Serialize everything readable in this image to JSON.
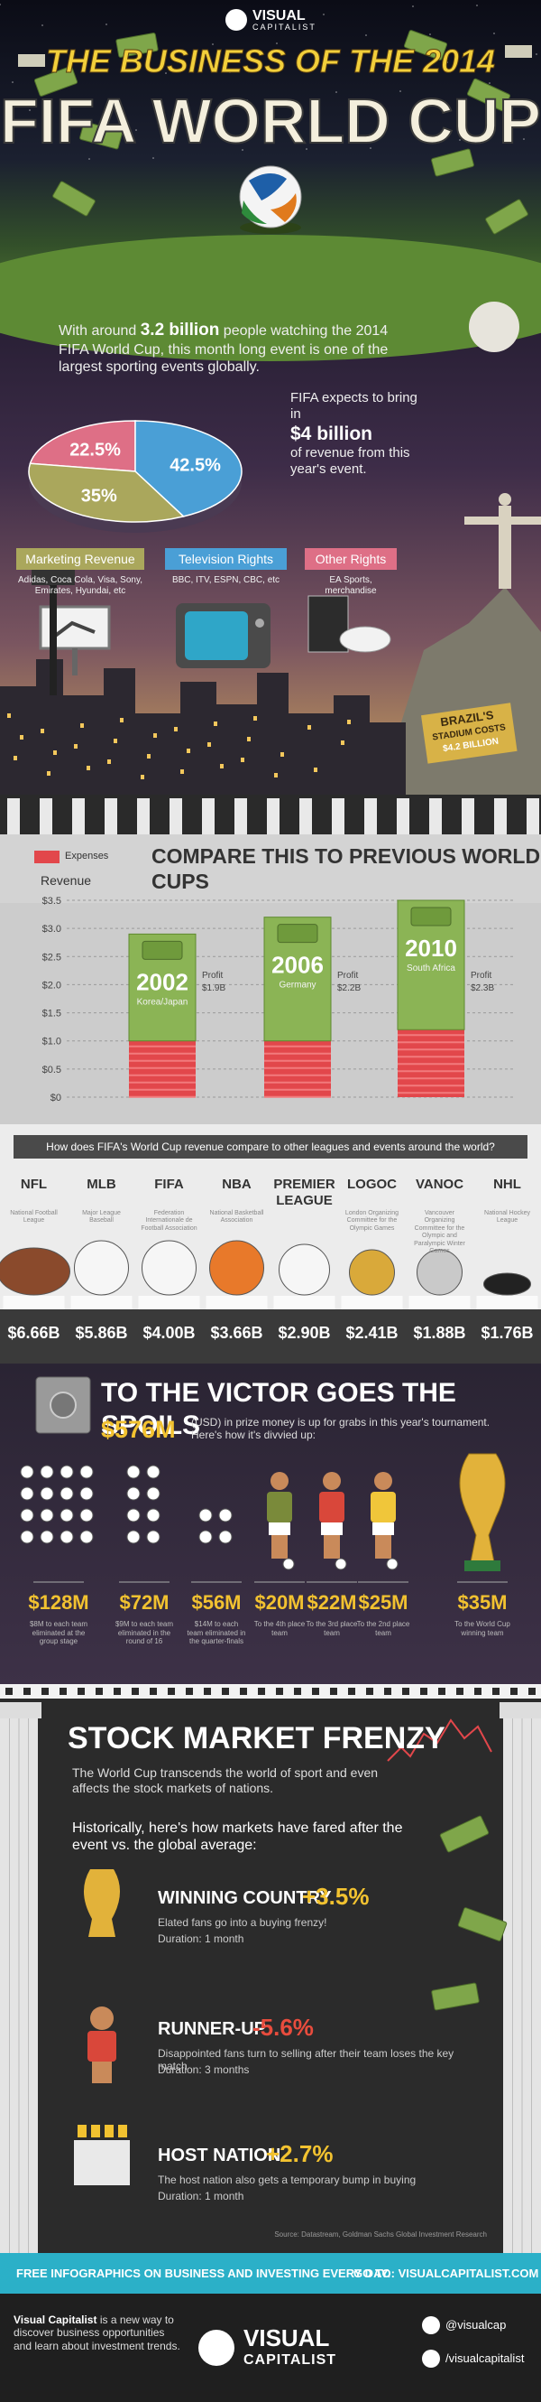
{
  "header": {
    "brand": [
      "VISUAL",
      "CAPITALIST"
    ],
    "title_line1": "THE BUSINESS OF THE 2014",
    "title_line2": "FIFA WORLD CUP"
  },
  "intro": {
    "text_parts": [
      "With around ",
      "3.2 billion",
      " people watching the 2014 FIFA World Cup, this month long event is one of the largest sporting events globally."
    ],
    "pie": {
      "values": [
        22.5,
        42.5,
        35
      ],
      "value_labels": [
        "22.5%",
        "42.5%",
        "35%"
      ],
      "colors": [
        "#de6f86",
        "#4a9fd6",
        "#aaa75c"
      ]
    },
    "expects": [
      "FIFA expects to bring in",
      "$4 billion",
      "of revenue from this year's event."
    ],
    "revenue_types": [
      {
        "name": "Marketing Revenue",
        "detail": "Adidas, Coca Cola, Visa, Sony, Emirates, Hyundai, etc",
        "color": "#aaa75c"
      },
      {
        "name": "Television Rights",
        "detail": "BBC, ITV, ESPN, CBC, etc",
        "color": "#4a9fd6"
      },
      {
        "name": "Other Rights",
        "detail": "EA Sports, merchandise",
        "color": "#de6f86"
      }
    ],
    "stadium_tag": [
      "BRAZIL'S",
      "STADIUM COSTS",
      "$4.2 BILLION"
    ]
  },
  "compare": {
    "legend": "Expenses",
    "title": "COMPARE THIS TO PREVIOUS WORLD CUPS",
    "axis_label": "Revenue",
    "ylim": [
      0,
      3.5
    ],
    "yticks": [
      {
        "value": 0,
        "label": "$0"
      },
      {
        "value": 0.5,
        "label": "$0.5"
      },
      {
        "value": 1,
        "label": "$1.0"
      },
      {
        "value": 1.5,
        "label": "$1.5"
      },
      {
        "value": 2,
        "label": "$2.0"
      },
      {
        "value": 2.5,
        "label": "$2.5"
      },
      {
        "value": 3,
        "label": "$3.0"
      },
      {
        "value": 3.5,
        "label": "$3.5"
      }
    ],
    "categories": [
      "2002",
      "2006",
      "2010"
    ],
    "hosts": [
      "Korea/Japan",
      "Germany",
      "South Africa"
    ],
    "expenses": [
      1.0,
      1.0,
      1.2
    ],
    "profit": {
      "label": "Profit",
      "values": [
        1.9,
        2.2,
        2.3
      ],
      "value_labels": [
        "$1.9B",
        "$2.2B",
        "$2.3B"
      ]
    }
  },
  "leagues": {
    "question": "How does FIFA's World Cup revenue compare to other leagues and events around the world?",
    "names": [
      "NFL",
      "MLB",
      "FIFA",
      "NBA",
      "PREMIER LEAGUE",
      "LOGOC",
      "VANOC",
      "NHL"
    ],
    "details": [
      "National Football League",
      "Major League Baseball",
      "Federation Internationale de Football Association",
      "National Basketball Association",
      null,
      "London Organizing Committee for the Olympic Games",
      "Vancouver Organizing Committee for the Olympic and Paralympic Winter Games",
      "National Hockey League"
    ],
    "revenues": [
      "$6.66B",
      "$5.86B",
      "$4.00B",
      "$3.66B",
      "$2.90B",
      "$2.41B",
      "$1.88B",
      "$1.76B"
    ]
  },
  "prizes": {
    "title": "TO THE VICTOR GOES THE SPOILS",
    "total": "$576M",
    "intro": "(USD) in prize money is up for grabs in this year's tournament. Here's how it's divvied up:",
    "amounts": [
      "$128M",
      "$72M",
      "$56M",
      "$20M",
      "$22M",
      "$25M",
      "$35M"
    ],
    "details": [
      "$8M to each team eliminated at the group stage",
      "$9M to each team eliminated in the round of 16",
      "$14M to each team eliminated in the quarter-finals",
      "To the 4th place team",
      "To the 3rd place team",
      "To the 2nd place team",
      "To the World Cup winning team"
    ]
  },
  "stock": {
    "title": "STOCK MARKET FRENZY",
    "subtitle": "The World Cup transcends the world of sport and even affects the stock markets of nations.",
    "lead": "Historically, here's how markets have fared after the event vs. the global average:",
    "items": [
      {
        "name": "WINNING COUNTRY",
        "change": "+3.5%",
        "description": "Elated fans go into a buying frenzy!",
        "duration": "Duration: 1 month"
      },
      {
        "name": "RUNNER-UP",
        "change": "-5.6%",
        "description": "Disappointed fans turn to selling after their team loses the key match",
        "duration": "Duration: 3 months"
      },
      {
        "name": "HOST NATION",
        "change": "+2.7%",
        "description": "The host nation also gets a temporary bump in buying",
        "duration": "Duration: 1 month"
      }
    ],
    "source": "Source: Datastream, Goldman Sachs Global Investment Research"
  },
  "banner": {
    "left": "FREE INFOGRAPHICS ON BUSINESS AND INVESTING EVERY DAY.",
    "right": "GO TO: VISUALCAPITALIST.COM"
  },
  "footer": {
    "about": [
      "Visual Capitalist",
      " is a new way to discover business opportunities and learn about investment trends."
    ],
    "brand": [
      "VISUAL",
      "CAPITALIST"
    ],
    "twitter": "@visualcap",
    "facebook": "/visualcapitalist"
  }
}
